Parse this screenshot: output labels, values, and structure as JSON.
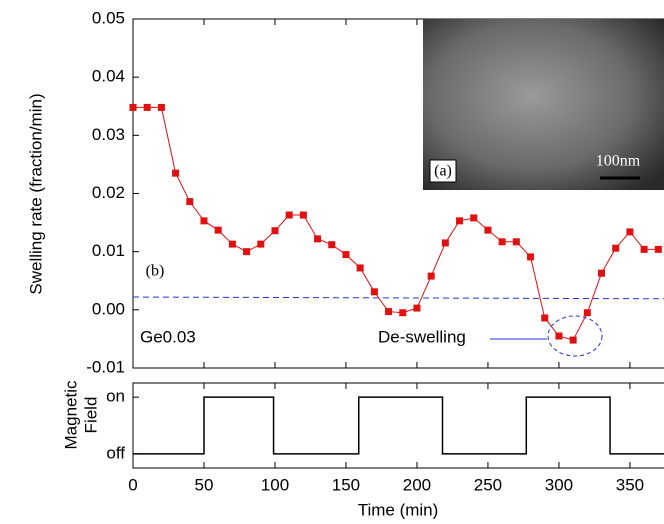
{
  "chart_data": [
    {
      "type": "line",
      "y_label": "Swelling rate (fraction/min)",
      "x": [
        0,
        10,
        20,
        30,
        40,
        50,
        60,
        70,
        80,
        90,
        100,
        110,
        120,
        130,
        140,
        150,
        160,
        170,
        180,
        190,
        200,
        210,
        220,
        230,
        240,
        250,
        260,
        270,
        280,
        290,
        300,
        310,
        320,
        330,
        340,
        350,
        360,
        370
      ],
      "series": [
        {
          "color": "#e01010",
          "values": [
            0.0348,
            0.0348,
            0.0348,
            0.0235,
            0.0186,
            0.0153,
            0.0137,
            0.0113,
            0.01,
            0.0113,
            0.0136,
            0.0163,
            0.0163,
            0.0122,
            0.0112,
            0.0095,
            0.0072,
            0.0031,
            -0.0003,
            -0.0005,
            0.0003,
            0.0058,
            0.0115,
            0.0153,
            0.0158,
            0.0137,
            0.0117,
            0.0117,
            0.0091,
            -0.0014,
            -0.0045,
            -0.0052,
            -0.0005,
            0.0063,
            0.0106,
            0.0134,
            0.0104,
            0.0104
          ]
        }
      ],
      "reference_line": {
        "x": [
          0,
          374
        ],
        "values": [
          0.0022,
          0.0019
        ],
        "color": "#2233dd"
      },
      "xlim": [
        0,
        374
      ],
      "xticks": [
        0,
        50,
        100,
        150,
        200,
        250,
        300,
        350
      ],
      "ylim": [
        -0.01,
        0.05
      ],
      "yticks": [
        -0.01,
        {
          "value": 0,
          "label": "0.00"
        },
        0.01,
        0.02,
        0.03,
        0.04,
        0.05
      ],
      "annotations": [
        "(b)",
        "Ge0.03",
        "De-swelling",
        "(a)",
        "100nm"
      ]
    },
    {
      "type": "step",
      "y_label": [
        "Magnetic",
        "Field"
      ],
      "x_label": "Time (min)",
      "x": [
        0,
        50,
        50,
        99,
        99,
        159,
        159,
        218,
        218,
        277,
        277,
        336,
        336,
        374
      ],
      "series": [
        {
          "color": "#000000",
          "values": [
            0,
            0,
            1,
            1,
            0,
            0,
            1,
            1,
            0,
            0,
            1,
            1,
            0,
            0
          ]
        }
      ],
      "xlim": [
        0,
        374
      ],
      "xticks": [
        0,
        50,
        100,
        150,
        200,
        250,
        300,
        350
      ],
      "ylim": [
        -0.25,
        1.25
      ],
      "yticks": [
        {
          "value": 0,
          "label": "off"
        },
        {
          "value": 1,
          "label": "on"
        }
      ]
    }
  ]
}
